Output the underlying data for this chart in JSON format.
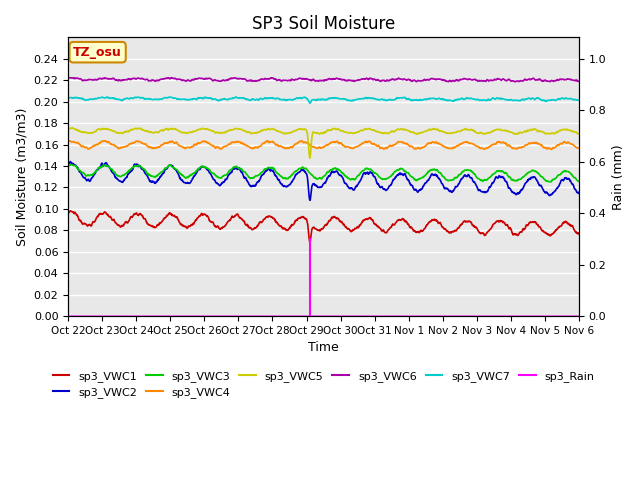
{
  "title": "SP3 Soil Moisture",
  "xlabel": "Time",
  "ylabel_left": "Soil Moisture (m3/m3)",
  "ylabel_right": "Rain (mm)",
  "ylim_left": [
    0.0,
    0.26
  ],
  "ylim_right": [
    0.0,
    1.083
  ],
  "yticks_left": [
    0.0,
    0.02,
    0.04,
    0.06,
    0.08,
    0.1,
    0.12,
    0.14,
    0.16,
    0.18,
    0.2,
    0.22,
    0.24
  ],
  "yticks_right": [
    0.0,
    0.2,
    0.4,
    0.6,
    0.8,
    1.0
  ],
  "tz_label": "TZ_osu",
  "bg_color": "#e8e8e8",
  "series": [
    {
      "name": "sp3_VWC1",
      "color": "#cc0000",
      "base": 0.091,
      "amp": 0.006,
      "trend": -0.01,
      "noise": 0.0015
    },
    {
      "name": "sp3_VWC2",
      "color": "#0000cc",
      "base": 0.135,
      "amp": 0.008,
      "trend": -0.015,
      "noise": 0.0015
    },
    {
      "name": "sp3_VWC3",
      "color": "#00cc00",
      "base": 0.136,
      "amp": 0.005,
      "trend": -0.006,
      "noise": 0.001
    },
    {
      "name": "sp3_VWC4",
      "color": "#ff8800",
      "base": 0.16,
      "amp": 0.003,
      "trend": -0.001,
      "noise": 0.001
    },
    {
      "name": "sp3_VWC5",
      "color": "#cccc00",
      "base": 0.173,
      "amp": 0.002,
      "trend": -0.001,
      "noise": 0.0008
    },
    {
      "name": "sp3_VWC6",
      "color": "#aa00aa",
      "base": 0.221,
      "amp": 0.001,
      "trend": -0.001,
      "noise": 0.0008
    },
    {
      "name": "sp3_VWC7",
      "color": "#00cccc",
      "base": 0.203,
      "amp": 0.001,
      "trend": -0.001,
      "noise": 0.0008
    }
  ],
  "rain_color": "#ff00ff",
  "spike_day": 7.33,
  "n_days": 15.5,
  "n_points": 1500,
  "xtick_labels": [
    "Oct 22",
    "Oct 23",
    "Oct 24",
    "Oct 25",
    "Oct 26",
    "Oct 27",
    "Oct 28",
    "Oct 29",
    "Oct 30",
    "Oct 31",
    "Nov 1",
    "Nov 2",
    "Nov 3",
    "Nov 4",
    "Nov 5",
    "Nov 6"
  ]
}
